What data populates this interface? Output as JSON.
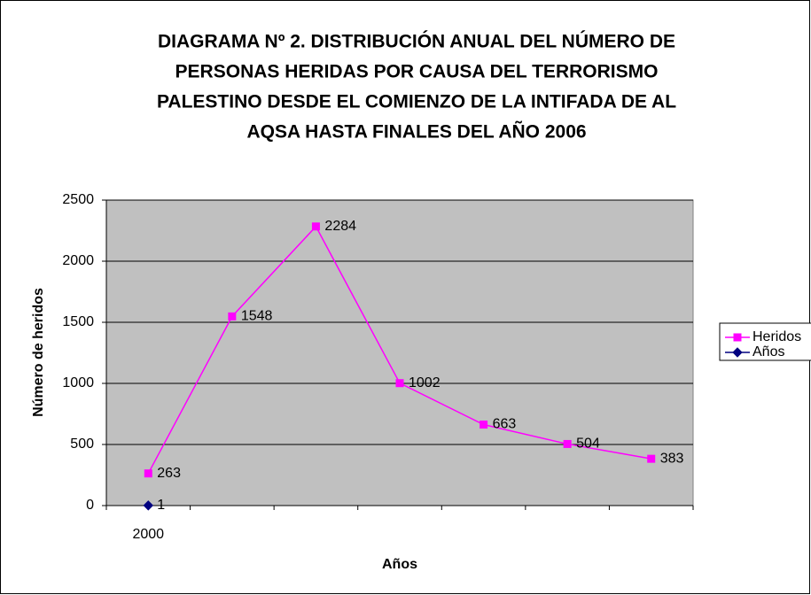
{
  "chart_data": {
    "type": "line",
    "title": [
      "DIAGRAMA Nº 2. DISTRIBUCIÓN ANUAL DEL NÚMERO DE",
      "PERSONAS HERIDAS POR CAUSA DEL TERRORISMO",
      "PALESTINO DESDE EL COMIENZO DE LA INTIFADA DE AL",
      "AQSA HASTA FINALES DEL AÑO 2006"
    ],
    "x_label": "Años",
    "y_label": "Número de heridos",
    "categories": [
      "2000",
      null,
      null,
      null,
      null,
      null,
      null
    ],
    "series": [
      {
        "name": "Heridos",
        "color": "#ff00ff",
        "marker": "square",
        "values": [
          263,
          1548,
          2284,
          1002,
          663,
          504,
          383
        ]
      },
      {
        "name": "Años",
        "color": "#000080",
        "marker": "diamond",
        "values": [
          1,
          null,
          null,
          null,
          null,
          null,
          null
        ]
      }
    ],
    "ylim": [
      0,
      2500
    ],
    "yticks": [
      0,
      500,
      1000,
      1500,
      2000,
      2500
    ],
    "grid": true,
    "legend": "right"
  }
}
